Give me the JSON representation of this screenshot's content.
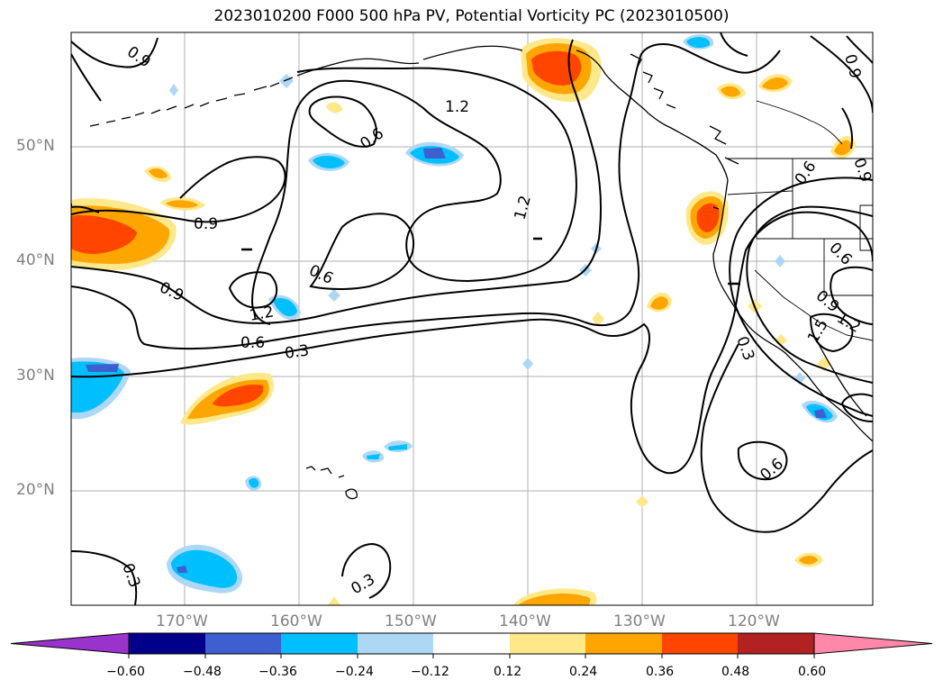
{
  "title": "2023010200 F000 500 hPa PV, Potential Vorticity PC (2023010500)",
  "latitude_labels": [
    "50°N",
    "40°N",
    "30°N",
    "20°N"
  ],
  "longitude_labels": [
    "170°W",
    "160°W",
    "150°W",
    "140°W",
    "130°W",
    "120°W"
  ],
  "contour_labels": [
    "0.9",
    "1.2",
    "0.6",
    "0.9",
    "0.9",
    "0.6",
    "1.2",
    "1.2",
    "0.6",
    "0.3",
    "0.9",
    "0.9",
    "0.6",
    "0.6",
    "0.9",
    "1.2",
    "1.5",
    "0.3",
    "0.6",
    "0.3",
    "0.3"
  ],
  "colorbar": {
    "tick_labels": [
      "−0.60",
      "−0.48",
      "−0.36",
      "−0.24",
      "−0.12",
      "0.12",
      "0.24",
      "0.36",
      "0.48",
      "0.60"
    ],
    "colors": [
      "#9933cc",
      "#00008b",
      "#3d5fcf",
      "#00bfff",
      "#add8f5",
      "#ffffff",
      "#ffe88a",
      "#ffa500",
      "#ff4500",
      "#b22222",
      "#ff88aa"
    ]
  }
}
